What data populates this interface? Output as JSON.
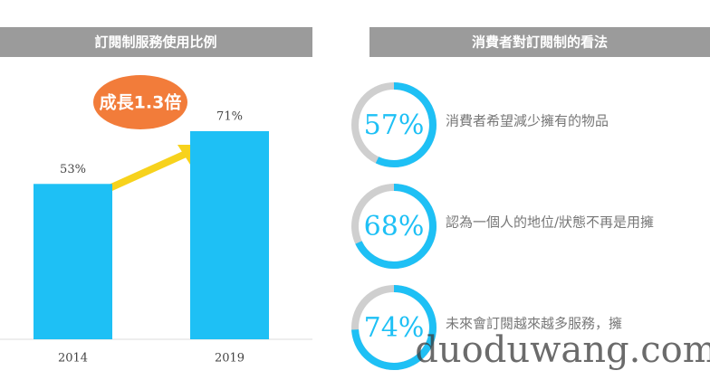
{
  "chart_data": [
    {
      "type": "bar",
      "title": "訂閱制服務使用比例",
      "categories": [
        "2014",
        "2019"
      ],
      "values": [
        53,
        71
      ],
      "value_labels": [
        "53%",
        "71%"
      ],
      "color": "#1ec0f5",
      "annotation": "成長1.3倍"
    },
    {
      "type": "donut",
      "title": "消費者對訂閱制的看法",
      "categories": [
        "消費者希望減少擁有的物品",
        "認為一個人的地位/狀態不再是用擁",
        "未來會訂閱越來越多服務，擁"
      ],
      "values": [
        57,
        68,
        74
      ],
      "value_labels": [
        "57%",
        "68%",
        "74%"
      ],
      "color": "#1ec0f5",
      "track_color": "#cfcfcf"
    }
  ],
  "watermark": "duoduwang.com"
}
